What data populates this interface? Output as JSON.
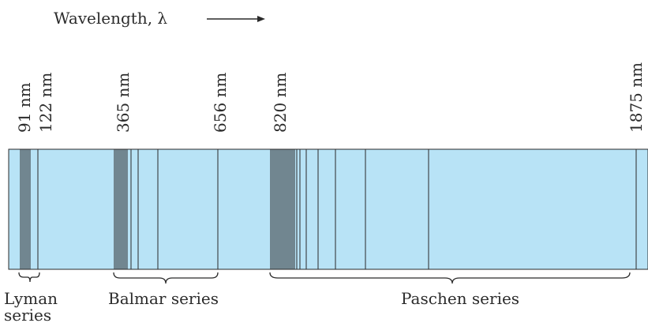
{
  "header": {
    "axis_label": "Wavelength, λ"
  },
  "wavelength_labels": [
    {
      "text": "91 nm",
      "value_nm": 91
    },
    {
      "text": "122 nm",
      "value_nm": 122
    },
    {
      "text": "365 nm",
      "value_nm": 365
    },
    {
      "text": "656 nm",
      "value_nm": 656
    },
    {
      "text": "820 nm",
      "value_nm": 820
    },
    {
      "text": "1875 nm",
      "value_nm": 1875
    }
  ],
  "series": [
    {
      "name": "Lyman series",
      "line1": "Lyman",
      "line2": "series"
    },
    {
      "name": "Balmar series",
      "line1": "Balmar series",
      "line2": ""
    },
    {
      "name": "Paschen series",
      "line1": "Paschen series",
      "line2": ""
    }
  ],
  "colors": {
    "band": "#b8e3f6",
    "line": "#2a2a2a",
    "text": "#2b2b2b"
  }
}
